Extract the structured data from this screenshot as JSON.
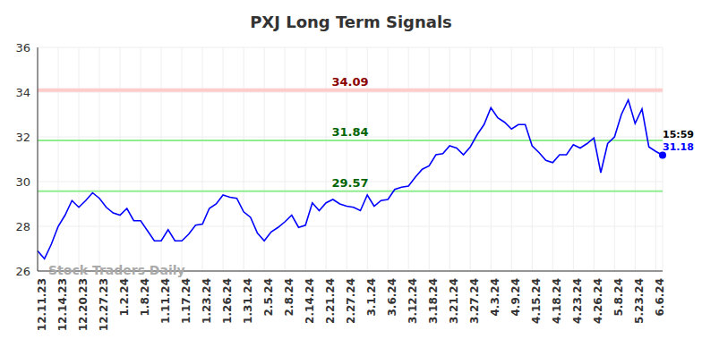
{
  "chart_data": {
    "type": "line",
    "title": "PXJ Long Term Signals",
    "categories": [
      "12.11.23",
      null,
      null,
      "12.14.23",
      null,
      null,
      "12.20.23",
      null,
      null,
      "12.27.23",
      null,
      null,
      "1.2.24",
      null,
      null,
      "1.8.24",
      null,
      null,
      "1.11.24",
      null,
      null,
      "1.17.24",
      null,
      null,
      "1.23.24",
      null,
      null,
      "1.26.24",
      null,
      null,
      "1.31.24",
      null,
      null,
      "2.5.24",
      null,
      null,
      "2.8.24",
      null,
      null,
      "2.14.24",
      null,
      null,
      "2.21.24",
      null,
      null,
      "2.27.24",
      null,
      null,
      "3.1.24",
      null,
      null,
      "3.6.24",
      null,
      null,
      "3.12.24",
      null,
      null,
      "3.18.24",
      null,
      null,
      "3.21.24",
      null,
      null,
      "3.27.24",
      null,
      null,
      "4.3.24",
      null,
      null,
      "4.9.24",
      null,
      null,
      "4.15.24",
      null,
      null,
      "4.18.24",
      null,
      null,
      "4.23.24",
      null,
      null,
      "4.26.24",
      null,
      null,
      "5.8.24",
      null,
      null,
      "5.23.24",
      null,
      null,
      "6.6.24",
      null
    ],
    "values": [
      26.9,
      26.55,
      27.2,
      28.0,
      28.5,
      29.15,
      28.85,
      29.15,
      29.5,
      29.25,
      28.85,
      28.6,
      28.5,
      28.8,
      28.25,
      28.25,
      27.8,
      27.35,
      27.35,
      27.85,
      27.35,
      27.35,
      27.65,
      28.05,
      28.1,
      28.8,
      29.0,
      29.4,
      29.3,
      29.25,
      28.65,
      28.4,
      27.7,
      27.35,
      27.75,
      27.95,
      28.2,
      28.5,
      27.95,
      28.05,
      29.05,
      28.7,
      29.05,
      29.2,
      29.0,
      28.9,
      28.85,
      28.7,
      29.4,
      28.9,
      29.15,
      29.2,
      29.65,
      29.75,
      29.8,
      30.2,
      30.55,
      30.7,
      31.2,
      31.25,
      31.6,
      31.5,
      31.2,
      31.55,
      32.1,
      32.55,
      33.3,
      32.85,
      32.65,
      32.35,
      32.55,
      32.55,
      31.6,
      31.3,
      30.95,
      30.85,
      31.2,
      31.2,
      31.65,
      31.5,
      31.7,
      31.95,
      30.4,
      31.7,
      32.0,
      33.0,
      33.65,
      32.6,
      33.25,
      31.55,
      31.35,
      31.18
    ],
    "color": "#0000ff",
    "ylim": [
      26,
      36
    ],
    "yticks": [
      26,
      28,
      30,
      32,
      34,
      36
    ],
    "grid": true,
    "signals": [
      {
        "value": 34.09,
        "color": "#ffcccc",
        "label_color": "#8b0000"
      },
      {
        "value": 31.84,
        "color": "#90ee90",
        "label_color": "#006400"
      },
      {
        "value": 29.57,
        "color": "#90ee90",
        "label_color": "#006400"
      }
    ],
    "last_time": "15:59",
    "watermark": "Stock Traders Daily"
  }
}
